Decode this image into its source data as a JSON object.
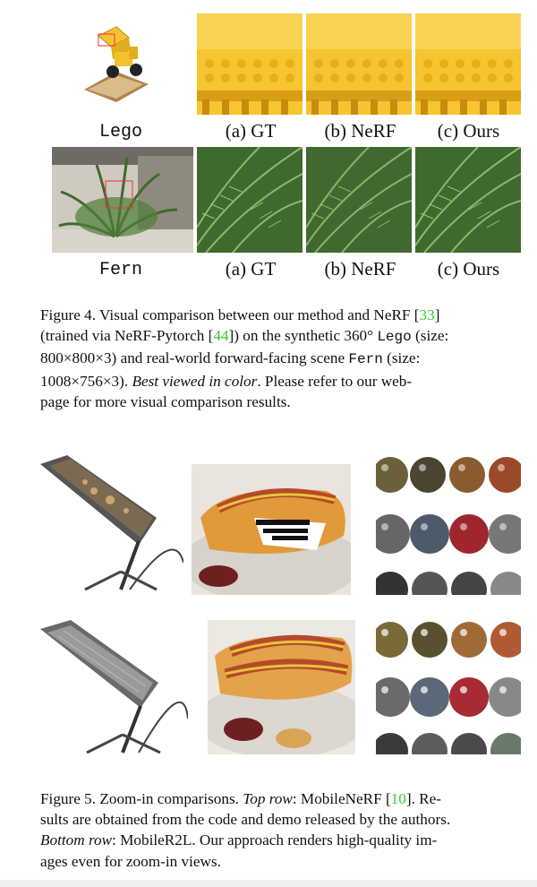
{
  "figure4": {
    "row1": {
      "scene": "Lego",
      "a": "(a) GT",
      "b": "(b) NeRF",
      "c": "(c) Ours"
    },
    "row2": {
      "scene": "Fern",
      "a": "(a) GT",
      "b": "(b) NeRF",
      "c": "(c) Ours"
    },
    "caption": {
      "l1a": "Figure 4.  Visual comparison between our method and NeRF [",
      "ref1": "33",
      "l1b": "]",
      "l2a": "(trained via NeRF-Pytorch [",
      "ref2": "44",
      "l2b": "]) on the synthetic 360° ",
      "l2tt": "Lego",
      "l2c": " (size:",
      "l3a": "800×800×3) and real-world forward-facing scene ",
      "l3tt": "Fern",
      "l3b": " (size:",
      "l4a": "1008×756×3).  ",
      "l4i": "Best viewed in color",
      "l4b": ".  Please refer to our web-",
      "l5": "page for more visual comparison results."
    }
  },
  "figure5": {
    "caption": {
      "l1a": "Figure 5. Zoom-in comparisons. ",
      "l1i": "Top row",
      "l1b": ": MobileNeRF [",
      "ref": "10",
      "l1c": "]. Re-",
      "l2": "sults are obtained from the code and demo released by the authors.",
      "l3i": "Bottom row",
      "l3b": ": MobileR2L. Our approach renders high-quality im-",
      "l4": "ages even for zoom-in views."
    }
  },
  "colors": {
    "link_green": "#2fcf2f",
    "lego_yellow": "#f6c431",
    "fern_green": "#3f6a2e"
  }
}
